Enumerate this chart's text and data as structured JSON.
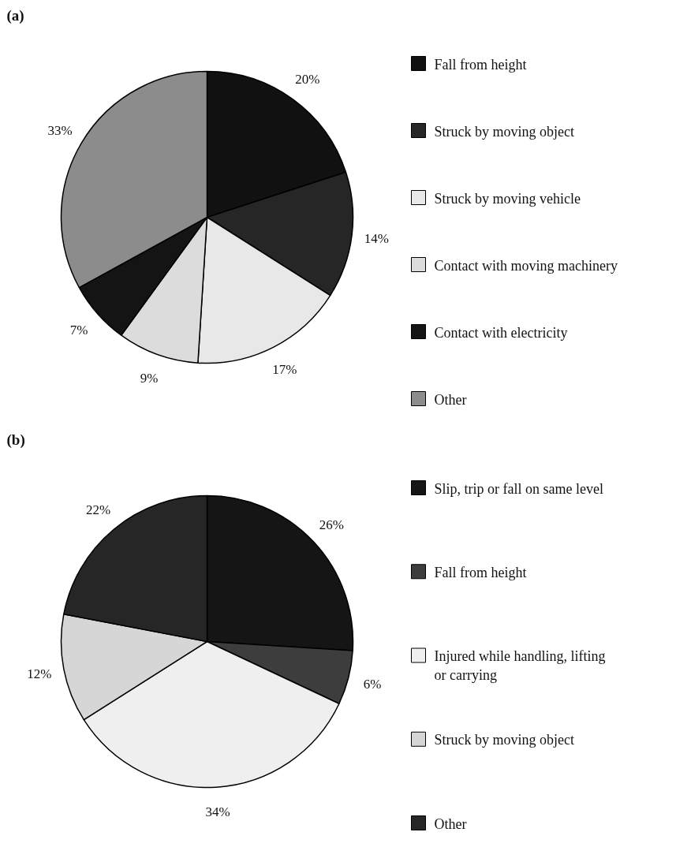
{
  "chart_data": [
    {
      "type": "pie",
      "title": "(a)",
      "categories": [
        "Fall from height",
        "Struck by moving object",
        "Struck by moving vehicle",
        "Contact with moving machinery",
        "Contact with electricity",
        "Other"
      ],
      "values": [
        20,
        14,
        17,
        9,
        7,
        33
      ],
      "colors": [
        "#111111",
        "#262626",
        "#e8e8e8",
        "#dcdcdc",
        "#141414",
        "#8c8c8c"
      ],
      "value_labels": [
        "20%",
        "14%",
        "17%",
        "9%",
        "7%",
        "33%"
      ],
      "legend": "right"
    },
    {
      "type": "pie",
      "title": "(b)",
      "categories": [
        "Slip, trip or fall on same level",
        "Fall from height",
        "Injured while handling, lifting or carrying",
        "Struck by moving object",
        "Other"
      ],
      "values": [
        26,
        6,
        34,
        12,
        22
      ],
      "colors": [
        "#151515",
        "#3d3d3d",
        "#efefef",
        "#d6d6d6",
        "#262626"
      ],
      "value_labels": [
        "26%",
        "6%",
        "34%",
        "12%",
        "22%"
      ],
      "legend": "right"
    }
  ]
}
